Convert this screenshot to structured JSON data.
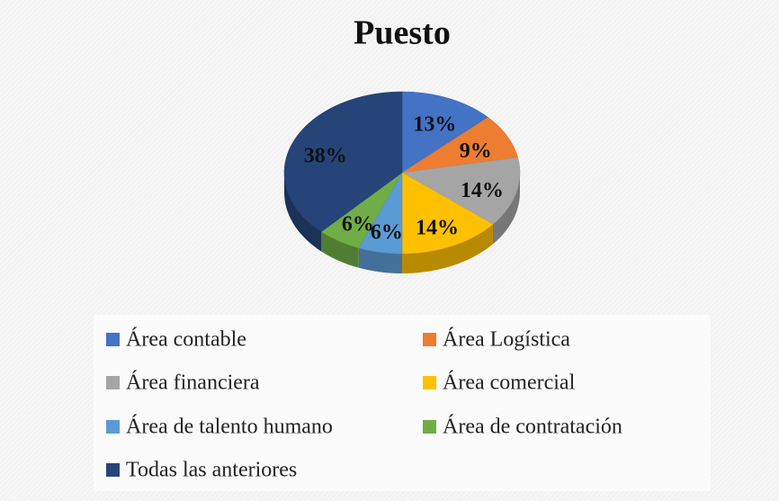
{
  "chart_data": {
    "type": "pie",
    "title": "Puesto",
    "categories": [
      "Área contable",
      "Área Logística",
      "Área financiera",
      "Área comercial",
      "Área de talento humano",
      "Área de contratación",
      "Todas las anteriores"
    ],
    "values": [
      13,
      9,
      14,
      14,
      6,
      6,
      38
    ],
    "value_labels": [
      "13%",
      "9%",
      "14%",
      "14%",
      "6%",
      "6%",
      "38%"
    ],
    "colors": [
      "#4472c4",
      "#ed7d31",
      "#a5a5a5",
      "#ffc000",
      "#5b9bd5",
      "#70ad47",
      "#264478"
    ],
    "legend": "bottom"
  }
}
